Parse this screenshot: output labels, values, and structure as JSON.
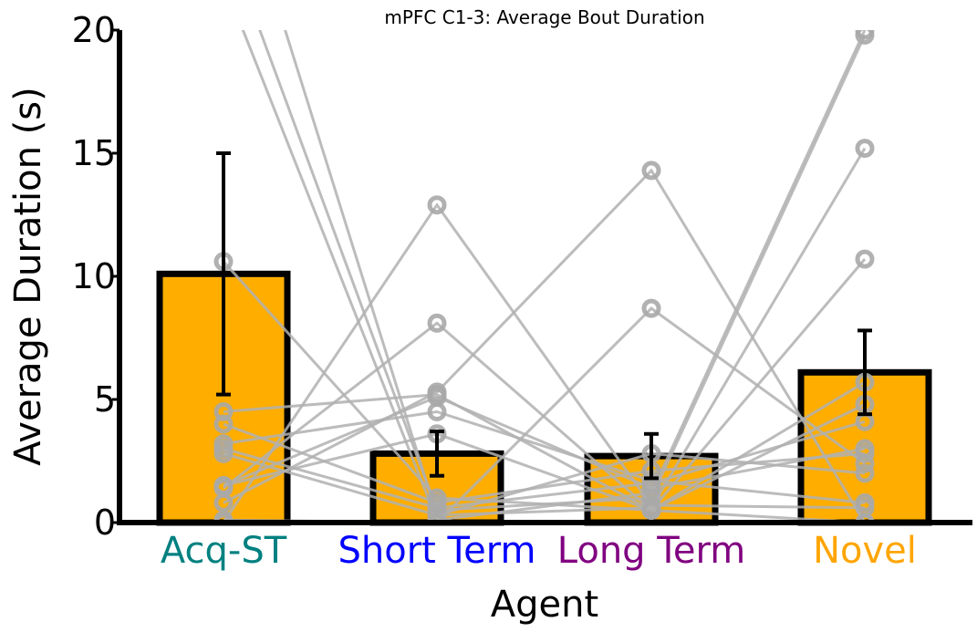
{
  "chart_data": {
    "type": "bar",
    "title": "mPFC C1-3: Average Bout Duration",
    "xlabel": "Agent",
    "ylabel": "Average Duration (s)",
    "ylim": [
      0,
      20
    ],
    "yticks": [
      0,
      5,
      10,
      15,
      20
    ],
    "categories": [
      "Acq-ST",
      "Short Term",
      "Long Term",
      "Novel"
    ],
    "category_colors": [
      "#008080",
      "#0000ff",
      "#800080",
      "#ffa500"
    ],
    "bar_color": "#ffae00",
    "bar_edge_color": "#000000",
    "values": [
      10.1,
      2.8,
      2.7,
      6.1
    ],
    "error": [
      {
        "low": 5.2,
        "high": 15.0
      },
      {
        "low": 1.9,
        "high": 3.7
      },
      {
        "low": 1.8,
        "high": 3.6
      },
      {
        "low": 4.4,
        "high": 7.8
      }
    ],
    "subject_lines_color": "#b0b0b0",
    "subjects": [
      [
        24.0,
        0.5,
        1.0,
        19.8
      ],
      [
        22.0,
        0.1,
        1.2,
        20.0
      ],
      [
        28.0,
        0.3,
        0.6,
        15.2
      ],
      [
        10.6,
        1.0,
        0.5,
        10.7
      ],
      [
        0.0,
        12.9,
        0.7,
        0.6
      ],
      [
        1.4,
        8.1,
        0.5,
        0.0
      ],
      [
        0.8,
        5.3,
        14.3,
        0.0
      ],
      [
        4.5,
        5.2,
        0.5,
        4.8
      ],
      [
        4.0,
        0.8,
        2.1,
        2.8
      ],
      [
        3.2,
        4.5,
        1.7,
        0.8
      ],
      [
        3.0,
        0.6,
        1.6,
        4.1
      ],
      [
        1.5,
        5.1,
        1.4,
        3.0
      ],
      [
        2.8,
        0.3,
        2.8,
        2.0
      ],
      [
        0.1,
        0.0,
        8.7,
        2.4
      ],
      [
        1.5,
        3.6,
        0.5,
        5.7
      ]
    ]
  }
}
